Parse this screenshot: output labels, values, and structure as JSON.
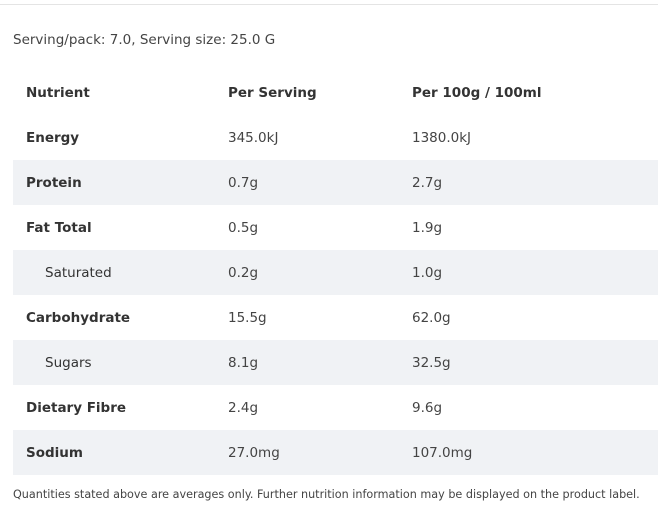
{
  "serving_info": "Serving/pack: 7.0, Serving size: 25.0 G",
  "table": {
    "headers": [
      "Nutrient",
      "Per Serving",
      "Per 100g / 100ml"
    ],
    "rows": [
      {
        "nutrient": "Energy",
        "per_serving": "345.0kJ",
        "per_100": "1380.0kJ"
      },
      {
        "nutrient": "Protein",
        "per_serving": "0.7g",
        "per_100": "2.7g"
      },
      {
        "nutrient": "Fat Total",
        "per_serving": "0.5g",
        "per_100": "1.9g"
      },
      {
        "nutrient": "Saturated",
        "per_serving": "0.2g",
        "per_100": "1.0g"
      },
      {
        "nutrient": "Carbohydrate",
        "per_serving": "15.5g",
        "per_100": "62.0g"
      },
      {
        "nutrient": "Sugars",
        "per_serving": "8.1g",
        "per_100": "32.5g"
      },
      {
        "nutrient": "Dietary Fibre",
        "per_serving": "2.4g",
        "per_100": "9.6g"
      },
      {
        "nutrient": "Sodium",
        "per_serving": "27.0mg",
        "per_100": "107.0mg"
      }
    ]
  },
  "footnote": "Quantities stated above are averages only. Further nutrition information may be displayed on the product label.",
  "colors": {
    "text": "#333333",
    "shaded_row": "#f0f2f5",
    "divider": "#e4e4e4"
  }
}
